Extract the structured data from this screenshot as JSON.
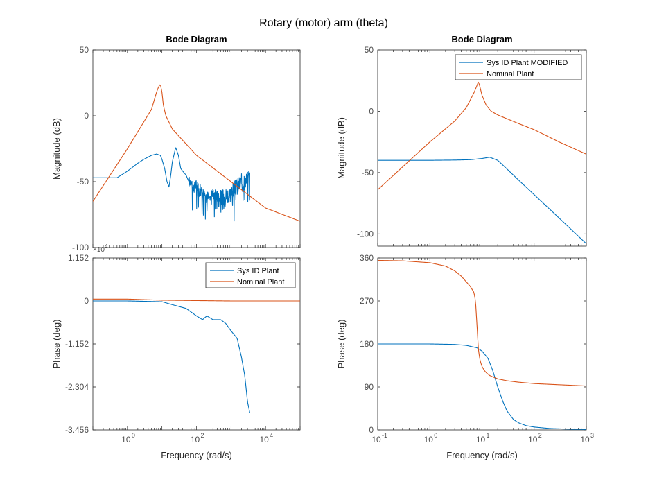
{
  "figure_title": "Rotary (motor) arm (theta)",
  "colors": {
    "sysid": "#0072bd",
    "nominal": "#d95319",
    "axis": "#262626",
    "tick_text": "#4d4d4d"
  },
  "chart_data": [
    {
      "id": "left-mag",
      "type": "line",
      "title": "Bode Diagram",
      "xlabel": "",
      "ylabel": "Magnitude (dB)",
      "x_scale": "log",
      "xlim": [
        0.1,
        100000
      ],
      "ylim": [
        -100,
        50
      ],
      "yticks": [
        -100,
        -50,
        0,
        50
      ],
      "ytick_labels": [
        "-100",
        "-50",
        "0",
        "50"
      ],
      "grid": false,
      "series": [
        {
          "color_key": "sysid",
          "x": [
            0.1,
            0.5,
            1,
            2,
            3,
            5,
            7,
            9,
            10,
            12,
            14,
            16,
            18,
            20,
            25,
            30,
            35,
            40,
            50,
            60,
            70,
            80,
            100,
            150,
            200,
            300,
            500,
            1000,
            2000,
            3000,
            3500
          ],
          "y": [
            -47,
            -47,
            -42,
            -36,
            -33,
            -30,
            -29,
            -30,
            -33,
            -40,
            -50,
            -54,
            -45,
            -35,
            -24,
            -30,
            -40,
            -42,
            -45,
            -50,
            -48,
            -55,
            -52,
            -58,
            -62,
            -58,
            -62,
            -58,
            -50,
            -48,
            -44
          ],
          "noisy_from": 60
        },
        {
          "color_key": "nominal",
          "x": [
            0.1,
            1,
            5,
            7,
            8,
            9,
            10,
            11,
            13,
            20,
            100,
            1000,
            10000,
            100000
          ],
          "y": [
            -65,
            -25,
            5,
            18,
            22,
            24,
            18,
            8,
            0,
            -10,
            -30,
            -50,
            -70,
            -80
          ]
        }
      ]
    },
    {
      "id": "left-phase",
      "type": "line",
      "xlabel": "Frequency  (rad/s)",
      "ylabel": "Phase (deg)",
      "x_scale": "log",
      "xlim": [
        0.1,
        100000
      ],
      "ylim": [
        -3.456,
        1.152
      ],
      "yticks": [
        -3.456,
        -2.304,
        -1.152,
        0,
        1.152
      ],
      "ytick_labels": [
        "-3.456",
        "-2.304",
        "-1.152",
        "0",
        "1.152"
      ],
      "yscale_factor": "×10",
      "yscale_exponent": "4",
      "xticks": [
        1,
        100,
        10000
      ],
      "xtick_mantissa": [
        "10",
        "10",
        "10"
      ],
      "xtick_exponent": [
        "0",
        "2",
        "4"
      ],
      "legend": [
        "Sys ID Plant",
        "Nominal Plant"
      ],
      "legend_location": "top-right",
      "series": [
        {
          "name": "Sys ID Plant",
          "color_key": "sysid",
          "x": [
            0.1,
            1,
            10,
            20,
            50,
            100,
            150,
            200,
            300,
            500,
            700,
            1000,
            1500,
            2000,
            2500,
            3000,
            3500
          ],
          "y": [
            0,
            0,
            -0.02,
            -0.1,
            -0.2,
            -0.4,
            -0.5,
            -0.4,
            -0.5,
            -0.5,
            -0.6,
            -0.8,
            -1.0,
            -1.5,
            -2.0,
            -2.7,
            -3.0
          ]
        },
        {
          "name": "Nominal Plant",
          "color_key": "nominal",
          "x": [
            0.1,
            1,
            10,
            100,
            1000,
            100000
          ],
          "y": [
            0.05,
            0.05,
            0.02,
            0.01,
            0.0,
            0.0
          ]
        }
      ]
    },
    {
      "id": "right-mag",
      "type": "line",
      "title": "Bode Diagram",
      "xlabel": "",
      "ylabel": "Magnitude (dB)",
      "x_scale": "log",
      "xlim": [
        0.1,
        1000
      ],
      "ylim": [
        -110,
        50
      ],
      "yticks": [
        -100,
        -50,
        0,
        50
      ],
      "ytick_labels": [
        "-100",
        "-50",
        "0",
        "50"
      ],
      "legend": [
        "Sys ID Plant MODIFIED",
        "Nominal Plant"
      ],
      "legend_location": "top-right",
      "series": [
        {
          "name": "Sys ID Plant MODIFIED",
          "color_key": "sysid",
          "x": [
            0.1,
            1,
            3,
            6,
            10,
            14,
            20,
            30,
            50,
            100,
            300,
            1000
          ],
          "y": [
            -40,
            -40,
            -39.8,
            -39.5,
            -38.5,
            -37.5,
            -40,
            -47,
            -56,
            -68,
            -87,
            -108
          ]
        },
        {
          "name": "Nominal Plant",
          "color_key": "nominal",
          "x": [
            0.1,
            1,
            3,
            5,
            7,
            8,
            8.5,
            9,
            10,
            12,
            15,
            20,
            50,
            100,
            300,
            1000
          ],
          "y": [
            -64,
            -25,
            -8,
            3,
            15,
            21,
            24,
            21,
            13,
            5,
            0,
            -3,
            -10,
            -15,
            -25,
            -35
          ]
        }
      ]
    },
    {
      "id": "right-phase",
      "type": "line",
      "xlabel": "Frequency  (rad/s)",
      "ylabel": "Phase (deg)",
      "x_scale": "log",
      "xlim": [
        0.1,
        1000
      ],
      "ylim": [
        0,
        360
      ],
      "yticks": [
        0,
        90,
        180,
        270,
        360
      ],
      "ytick_labels": [
        "0",
        "90",
        "180",
        "270",
        "360"
      ],
      "xticks": [
        0.1,
        1,
        10,
        100,
        1000
      ],
      "xtick_mantissa": [
        "10",
        "10",
        "10",
        "10",
        "10"
      ],
      "xtick_exponent": [
        "-1",
        "0",
        "1",
        "2",
        "3"
      ],
      "series": [
        {
          "color_key": "sysid",
          "x": [
            0.1,
            1,
            3,
            5,
            8,
            10,
            13,
            16,
            20,
            25,
            30,
            40,
            50,
            70,
            100,
            200,
            500,
            1000
          ],
          "y": [
            180,
            180,
            179,
            177,
            172,
            165,
            150,
            125,
            90,
            60,
            40,
            22,
            15,
            9,
            6,
            3,
            1.5,
            1
          ]
        },
        {
          "color_key": "nominal",
          "x": [
            0.1,
            0.3,
            1,
            2,
            3,
            4,
            5,
            6,
            7,
            7.5,
            8,
            8.5,
            9,
            9.5,
            10,
            11,
            12,
            14,
            17,
            20,
            30,
            50,
            100,
            1000
          ],
          "y": [
            355,
            354,
            350,
            343,
            333,
            322,
            310,
            300,
            288,
            270,
            220,
            170,
            150,
            140,
            133,
            125,
            120,
            114,
            110,
            107,
            103,
            100,
            97,
            92
          ]
        }
      ]
    }
  ]
}
